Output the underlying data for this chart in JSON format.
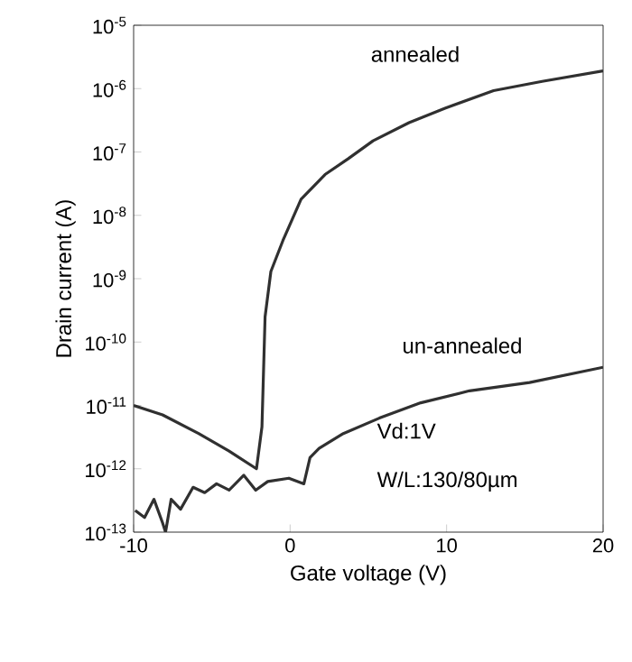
{
  "chart_data": {
    "type": "line",
    "xlabel": "Gate voltage (V)",
    "ylabel": "Drain current (A)",
    "log": "y",
    "legend": false,
    "marker": "none",
    "line_style": "solid",
    "grid": false,
    "xlim": [
      -10,
      20
    ],
    "xticks": [
      -10,
      0,
      10,
      20
    ],
    "ylim": [
      1e-13,
      1e-05
    ],
    "yticks": [
      {
        "value": 1e-13,
        "label": "10$^{-13}$"
      },
      {
        "value": 1e-12,
        "label": "10$^{-12}$"
      },
      {
        "value": 1e-11,
        "label": "10$^{-11}$"
      },
      {
        "value": 1e-10,
        "label": "10$^{-10}$"
      },
      {
        "value": 1e-09,
        "label": "10$^{-9}$"
      },
      {
        "value": 1e-08,
        "label": "10$^{-8}$"
      },
      {
        "value": 1e-07,
        "label": "10$^{-7}$"
      },
      {
        "value": 1e-06,
        "label": "10$^{-6}$"
      },
      {
        "value": 1e-05,
        "label": "10$^{-5}$"
      }
    ],
    "series": [
      {
        "name": "annealed",
        "color": "#303030",
        "x": [
          -10,
          -8.15,
          -5.85,
          -3.9,
          -2.15,
          -1.8,
          -1.6,
          -1.23,
          -0.46,
          0.7,
          2.23,
          3.7,
          5.3,
          7.6,
          9.9,
          13.0,
          16.1,
          20
        ],
        "values": [
          1e-11,
          7.1e-12,
          3.6e-12,
          1.9e-12,
          1e-12,
          4.6e-12,
          2.5e-10,
          1.3e-09,
          4e-09,
          1.8e-08,
          4.4e-08,
          7.8e-08,
          1.5e-07,
          2.9e-07,
          4.9e-07,
          9.3e-07,
          1.3e-06,
          1.9e-06
        ]
      },
      {
        "name": "un-annealed",
        "color": "#303030",
        "x": [
          -9.9,
          -9.3,
          -8.7,
          -8.15,
          -7.96,
          -7.6,
          -7.0,
          -6.2,
          -5.46,
          -4.7,
          -3.9,
          -2.96,
          -2.2,
          -1.43,
          -0.08,
          0.88,
          1.27,
          1.85,
          3.4,
          5.7,
          8.35,
          11.46,
          15.3,
          20
        ],
        "values": [
          2.2e-13,
          1.7e-13,
          3.3e-13,
          1.4e-13,
          1e-13,
          3.3e-13,
          2.3e-13,
          5.1e-13,
          4.2e-13,
          5.8e-13,
          4.6e-13,
          7.9e-13,
          4.6e-13,
          6.3e-13,
          7.1e-13,
          5.8e-13,
          1.5e-12,
          2.1e-12,
          3.6e-12,
          6.3e-12,
          1.1e-11,
          1.7e-11,
          2.3e-11,
          4e-11
        ]
      }
    ],
    "annotations": [
      "Vd:1V",
      "W/L:130/80µm"
    ]
  }
}
